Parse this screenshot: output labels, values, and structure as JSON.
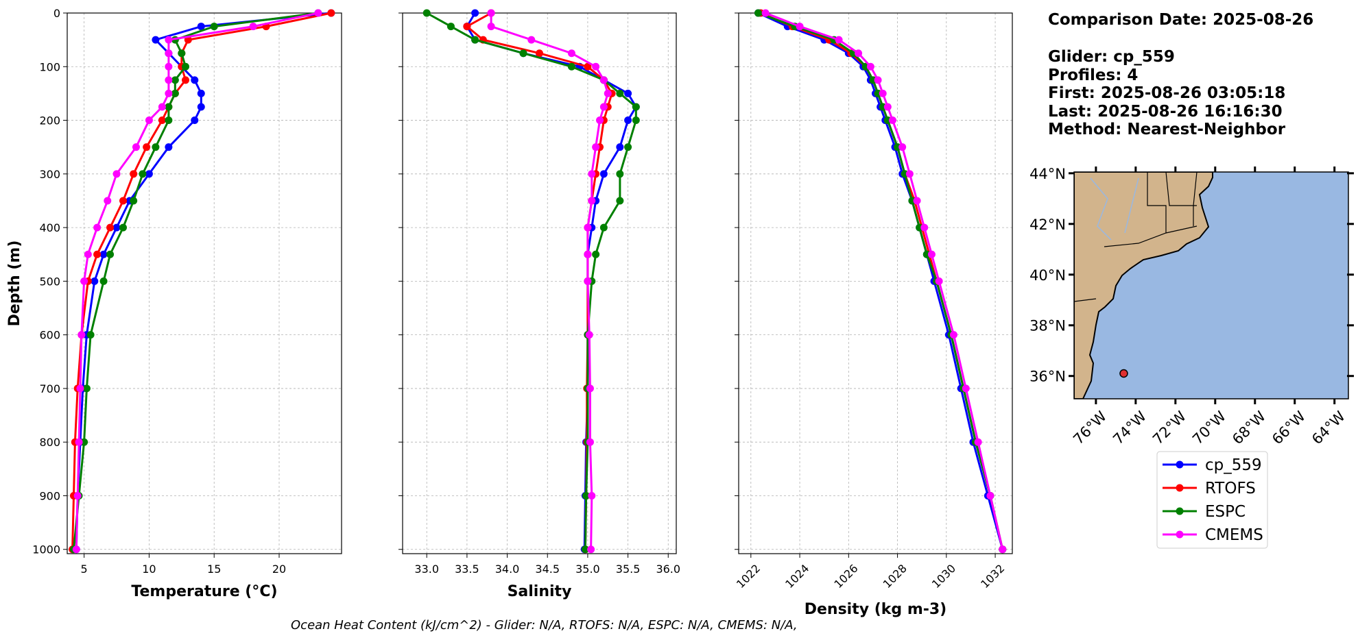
{
  "chart_data": [
    {
      "type": "line",
      "xlabel": "Temperature (°C)",
      "xlim": [
        3.7,
        24.8
      ],
      "xticks": [
        5,
        10,
        15,
        20
      ],
      "tick_rotation": 0,
      "series": [
        {
          "values": [
            24,
            14,
            10.5,
            11.5,
            12.5,
            13.5,
            14,
            14,
            13.5,
            11.5,
            10,
            8.5,
            7.5,
            6.5,
            5.8,
            5.2,
            4.9,
            4.7,
            4.5,
            4.4
          ]
        },
        {
          "values": [
            24,
            19,
            13,
            12.5,
            12.5,
            12.8,
            12,
            11.5,
            11,
            9.8,
            8.8,
            8,
            7,
            6,
            5.3,
            4.8,
            4.5,
            4.3,
            4.2,
            4.1
          ]
        },
        {
          "values": [
            23,
            15,
            12,
            12.5,
            12.8,
            12,
            12,
            11.5,
            11.5,
            10.5,
            9.5,
            8.8,
            8,
            7,
            6.5,
            5.5,
            5.2,
            5,
            4.6,
            4.2
          ]
        },
        {
          "values": [
            23,
            18,
            11.5,
            11.5,
            11.5,
            11.5,
            11.5,
            11,
            10,
            9,
            7.5,
            6.8,
            6,
            5.3,
            5,
            4.8,
            4.7,
            4.6,
            4.5,
            4.4
          ]
        }
      ]
    },
    {
      "type": "line",
      "xlabel": "Salinity",
      "xlim": [
        32.7,
        36.1
      ],
      "xticks": [
        {
          "value": 33,
          "label": "33.0"
        },
        33.5,
        {
          "value": 34,
          "label": "34.0"
        },
        34.5,
        {
          "value": 35,
          "label": "35.0"
        },
        35.5,
        {
          "value": 36,
          "label": "36.0"
        }
      ],
      "tick_rotation": 0,
      "series": [
        {
          "values": [
            33.6,
            33.5,
            33.6,
            34.2,
            34.9,
            35.2,
            35.5,
            35.6,
            35.5,
            35.4,
            35.2,
            35.1,
            35.05,
            35,
            35,
            35,
            35,
            34.98,
            34.97,
            34.96
          ]
        },
        {
          "values": [
            33.8,
            33.5,
            33.7,
            34.4,
            35,
            35.2,
            35.3,
            35.25,
            35.2,
            35.15,
            35.1,
            35.05,
            35,
            35,
            35,
            35,
            34.99,
            34.99,
            34.98,
            34.97
          ]
        },
        {
          "values": [
            33,
            33.3,
            33.6,
            34.2,
            34.8,
            35.2,
            35.4,
            35.6,
            35.6,
            35.5,
            35.4,
            35.4,
            35.2,
            35.1,
            35.05,
            35,
            35,
            35,
            34.98,
            34.97
          ]
        },
        {
          "values": [
            33.8,
            33.8,
            34.3,
            34.8,
            35.1,
            35.2,
            35.25,
            35.2,
            35.15,
            35.1,
            35.05,
            35.05,
            35,
            35,
            35,
            35.02,
            35.03,
            35.03,
            35.05,
            35.04
          ]
        }
      ]
    },
    {
      "type": "line",
      "xlabel": "Density (kg m-3)",
      "xlim": [
        1021.5,
        1032.7
      ],
      "xticks": [
        1022,
        1024,
        1026,
        1028,
        1030,
        1032
      ],
      "tick_rotation": -45,
      "series": [
        {
          "values": [
            1022.3,
            1023.5,
            1025,
            1026,
            1026.6,
            1026.9,
            1027.1,
            1027.3,
            1027.5,
            1027.9,
            1028.2,
            1028.6,
            1028.9,
            1029.2,
            1029.5,
            1030.1,
            1030.6,
            1031.1,
            1031.7,
            1032.3
          ]
        },
        {
          "values": [
            1022.4,
            1023.7,
            1025.2,
            1026.1,
            1026.7,
            1027,
            1027.2,
            1027.4,
            1027.6,
            1028,
            1028.3,
            1028.7,
            1029,
            1029.3,
            1029.6,
            1030.2,
            1030.7,
            1031.2,
            1031.8,
            1032.3
          ]
        },
        {
          "values": [
            1022.3,
            1023.8,
            1025.4,
            1026.2,
            1026.7,
            1027,
            1027.2,
            1027.4,
            1027.6,
            1028,
            1028.3,
            1028.6,
            1028.9,
            1029.2,
            1029.6,
            1030.2,
            1030.7,
            1031.2,
            1031.8,
            1032.3
          ]
        },
        {
          "values": [
            1022.6,
            1024,
            1025.6,
            1026.4,
            1026.9,
            1027.2,
            1027.4,
            1027.6,
            1027.8,
            1028.2,
            1028.5,
            1028.8,
            1029.1,
            1029.4,
            1029.7,
            1030.3,
            1030.8,
            1031.3,
            1031.8,
            1032.3
          ]
        }
      ]
    }
  ],
  "depth_axis": {
    "label": "Depth (m)",
    "ylim": [
      0,
      1008
    ],
    "inverted": true,
    "yticks": [
      0,
      100,
      200,
      300,
      400,
      500,
      600,
      700,
      800,
      900,
      1000
    ],
    "depths": [
      0,
      25,
      50,
      75,
      100,
      125,
      150,
      175,
      200,
      250,
      300,
      350,
      400,
      450,
      500,
      600,
      700,
      800,
      900,
      1000
    ]
  },
  "legend": [
    {
      "name": "cp_559",
      "color": "#0000ff"
    },
    {
      "name": "RTOFS",
      "color": "#ff0000"
    },
    {
      "name": "ESPC",
      "color": "#008000"
    },
    {
      "name": "CMEMS",
      "color": "#ff00ff"
    }
  ],
  "info": [
    "Comparison Date: 2025-08-26",
    "Glider: cp_559",
    "Profiles: 4",
    "First: 2025-08-26 03:05:18",
    "Last: 2025-08-26 16:16:30",
    "Method: Nearest-Neighbor"
  ],
  "map": {
    "lonlim": [
      -77.1,
      -63.3
    ],
    "latlim": [
      35.1,
      44.05
    ],
    "latticks": [
      {
        "value": 44,
        "label": "44°N"
      },
      {
        "value": 42,
        "label": "42°N"
      },
      {
        "value": 40,
        "label": "40°N"
      },
      {
        "value": 38,
        "label": "38°N"
      },
      {
        "value": 36,
        "label": "36°N"
      }
    ],
    "lonticks": [
      {
        "value": -76,
        "label": "76°W"
      },
      {
        "value": -74,
        "label": "74°W"
      },
      {
        "value": -72,
        "label": "72°W"
      },
      {
        "value": -70,
        "label": "70°W"
      },
      {
        "value": -68,
        "label": "68°W"
      },
      {
        "value": -66,
        "label": "66°W"
      },
      {
        "value": -64,
        "label": "64°W"
      }
    ],
    "point": {
      "lon": -74.6,
      "lat": 36.1
    }
  },
  "footer": "Ocean Heat Content (kJ/cm^2) - Glider: N/A,  RTOFS: N/A,  ESPC: N/A,  CMEMS: N/A,"
}
